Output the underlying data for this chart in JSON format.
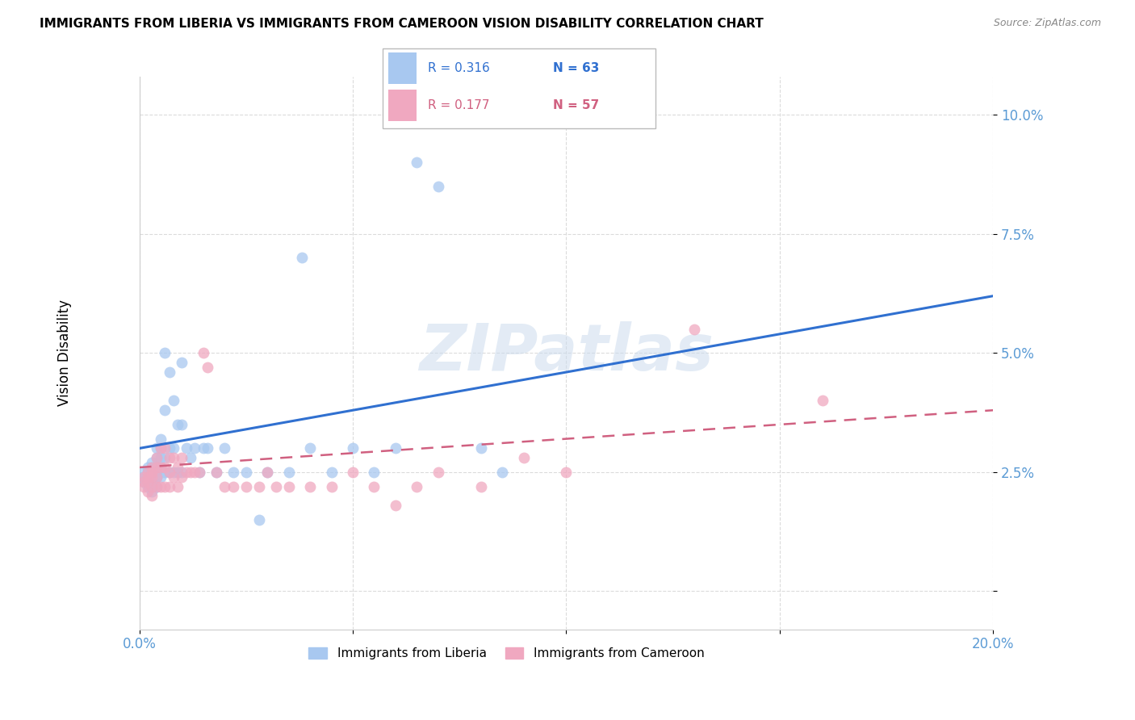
{
  "title": "IMMIGRANTS FROM LIBERIA VS IMMIGRANTS FROM CAMEROON VISION DISABILITY CORRELATION CHART",
  "source": "Source: ZipAtlas.com",
  "xlabel_liberia": "Immigrants from Liberia",
  "xlabel_cameroon": "Immigrants from Cameroon",
  "ylabel": "Vision Disability",
  "xlim": [
    0.0,
    0.2
  ],
  "ylim": [
    -0.008,
    0.108
  ],
  "xtick_positions": [
    0.0,
    0.05,
    0.1,
    0.15,
    0.2
  ],
  "xtick_labels": [
    "0.0%",
    "",
    "",
    "",
    "20.0%"
  ],
  "ytick_positions": [
    0.0,
    0.025,
    0.05,
    0.075,
    0.1
  ],
  "ytick_labels": [
    "",
    "2.5%",
    "5.0%",
    "7.5%",
    "10.0%"
  ],
  "legend_liberia_R": "R = 0.316",
  "legend_liberia_N": "N = 63",
  "legend_cameroon_R": "R = 0.177",
  "legend_cameroon_N": "N = 57",
  "color_liberia": "#a8c8f0",
  "color_cameroon": "#f0a8c0",
  "color_liberia_line": "#3070d0",
  "color_cameroon_line": "#d06080",
  "color_axis_ticks": "#5b9bd5",
  "color_grid": "#d8d8d8",
  "watermark": "ZIPatlas",
  "lib_line_x0": 0.0,
  "lib_line_x1": 0.2,
  "lib_line_y0": 0.03,
  "lib_line_y1": 0.062,
  "cam_line_x0": 0.0,
  "cam_line_x1": 0.2,
  "cam_line_y0": 0.026,
  "cam_line_y1": 0.038,
  "liberia_x": [
    0.001,
    0.001,
    0.001,
    0.002,
    0.002,
    0.002,
    0.002,
    0.002,
    0.003,
    0.003,
    0.003,
    0.003,
    0.003,
    0.003,
    0.003,
    0.004,
    0.004,
    0.004,
    0.004,
    0.004,
    0.005,
    0.005,
    0.005,
    0.005,
    0.005,
    0.006,
    0.006,
    0.006,
    0.006,
    0.007,
    0.007,
    0.007,
    0.008,
    0.008,
    0.008,
    0.009,
    0.009,
    0.01,
    0.01,
    0.01,
    0.011,
    0.012,
    0.013,
    0.014,
    0.015,
    0.016,
    0.018,
    0.02,
    0.022,
    0.025,
    0.028,
    0.03,
    0.035,
    0.038,
    0.04,
    0.045,
    0.05,
    0.055,
    0.06,
    0.065,
    0.07,
    0.08,
    0.085
  ],
  "liberia_y": [
    0.025,
    0.024,
    0.023,
    0.026,
    0.025,
    0.024,
    0.023,
    0.022,
    0.027,
    0.026,
    0.025,
    0.024,
    0.023,
    0.022,
    0.021,
    0.03,
    0.028,
    0.026,
    0.024,
    0.022,
    0.032,
    0.03,
    0.028,
    0.026,
    0.024,
    0.05,
    0.038,
    0.028,
    0.025,
    0.046,
    0.03,
    0.025,
    0.04,
    0.03,
    0.025,
    0.035,
    0.025,
    0.048,
    0.035,
    0.025,
    0.03,
    0.028,
    0.03,
    0.025,
    0.03,
    0.03,
    0.025,
    0.03,
    0.025,
    0.025,
    0.015,
    0.025,
    0.025,
    0.07,
    0.03,
    0.025,
    0.03,
    0.025,
    0.03,
    0.09,
    0.085,
    0.03,
    0.025
  ],
  "cameroon_x": [
    0.001,
    0.001,
    0.001,
    0.002,
    0.002,
    0.002,
    0.002,
    0.003,
    0.003,
    0.003,
    0.003,
    0.003,
    0.004,
    0.004,
    0.004,
    0.004,
    0.005,
    0.005,
    0.005,
    0.006,
    0.006,
    0.006,
    0.007,
    0.007,
    0.007,
    0.008,
    0.008,
    0.009,
    0.009,
    0.01,
    0.01,
    0.011,
    0.012,
    0.013,
    0.014,
    0.015,
    0.016,
    0.018,
    0.02,
    0.022,
    0.025,
    0.028,
    0.03,
    0.032,
    0.035,
    0.04,
    0.045,
    0.05,
    0.055,
    0.06,
    0.065,
    0.07,
    0.08,
    0.09,
    0.1,
    0.13,
    0.16
  ],
  "cameroon_y": [
    0.024,
    0.023,
    0.022,
    0.025,
    0.024,
    0.023,
    0.021,
    0.026,
    0.025,
    0.024,
    0.022,
    0.02,
    0.028,
    0.026,
    0.024,
    0.022,
    0.03,
    0.026,
    0.022,
    0.03,
    0.026,
    0.022,
    0.028,
    0.025,
    0.022,
    0.028,
    0.024,
    0.026,
    0.022,
    0.028,
    0.024,
    0.025,
    0.025,
    0.025,
    0.025,
    0.05,
    0.047,
    0.025,
    0.022,
    0.022,
    0.022,
    0.022,
    0.025,
    0.022,
    0.022,
    0.022,
    0.022,
    0.025,
    0.022,
    0.018,
    0.022,
    0.025,
    0.022,
    0.028,
    0.025,
    0.055,
    0.04
  ]
}
